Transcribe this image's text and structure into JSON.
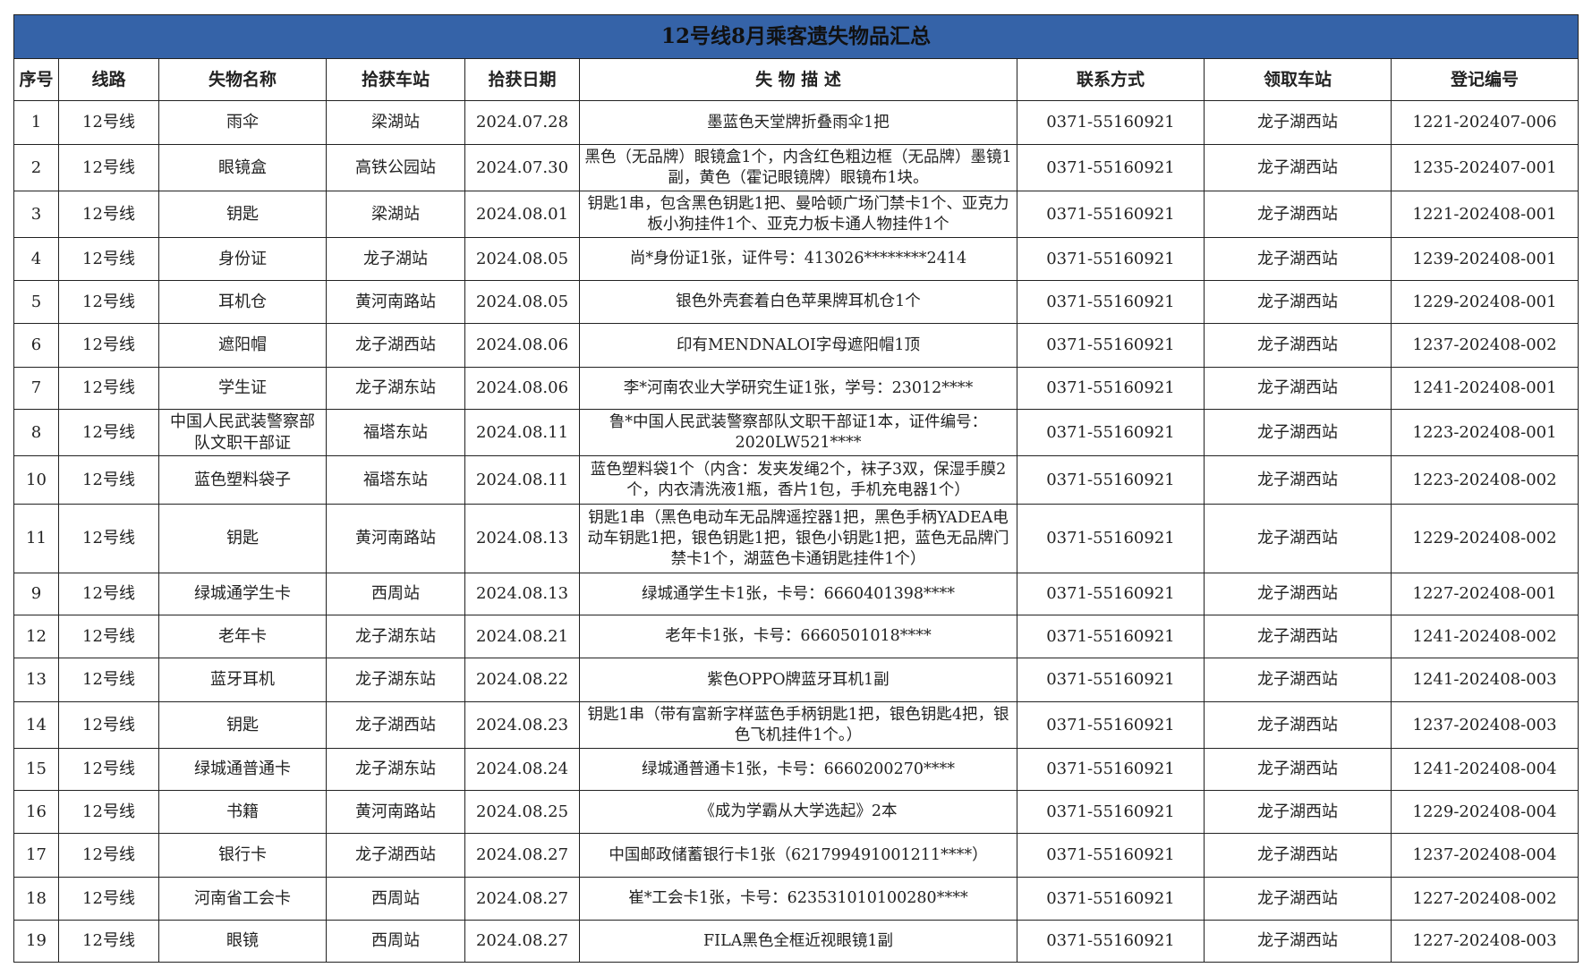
{
  "title": "12号线8月乘客遗失物品汇总",
  "headers": [
    "序号",
    "线路",
    "失物名称",
    "拾获车站",
    "拾获日期",
    "失 物 描 述",
    "联系方式",
    "领取车站",
    "登记编号"
  ],
  "rows": [
    [
      "1",
      "12号线",
      "雨伞",
      "梁湖站",
      "2024.07.28",
      "墨蓝色天堂牌折叠雨伞1把",
      "0371-55160921",
      "龙子湖西站",
      "1221-202407-006"
    ],
    [
      "2",
      "12号线",
      "眼镜盒",
      "高铁公园站",
      "2024.07.30",
      "黑色（无品牌）眼镜盒1个，内含红色粗边框（无品牌）墨镜1副，黄色（霍记眼镜牌）眼镜布1块。",
      "0371-55160921",
      "龙子湖西站",
      "1235-202407-001"
    ],
    [
      "3",
      "12号线",
      "钥匙",
      "梁湖站",
      "2024.08.01",
      "钥匙1串，包含黑色钥匙1把、曼哈顿广场门禁卡1个、亚克力板小狗挂件1个、亚克力板卡通人物挂件1个",
      "0371-55160921",
      "龙子湖西站",
      "1221-202408-001"
    ],
    [
      "4",
      "12号线",
      "身份证",
      "龙子湖站",
      "2024.08.05",
      "尚*身份证1张，证件号：413026********2414",
      "0371-55160921",
      "龙子湖西站",
      "1239-202408-001"
    ],
    [
      "5",
      "12号线",
      "耳机仓",
      "黄河南路站",
      "2024.08.05",
      "银色外壳套着白色苹果牌耳机仓1个",
      "0371-55160921",
      "龙子湖西站",
      "1229-202408-001"
    ],
    [
      "6",
      "12号线",
      "遮阳帽",
      "龙子湖西站",
      "2024.08.06",
      "印有MENDNALOI字母遮阳帽1顶",
      "0371-55160921",
      "龙子湖西站",
      "1237-202408-002"
    ],
    [
      "7",
      "12号线",
      "学生证",
      "龙子湖东站",
      "2024.08.06",
      "李*河南农业大学研究生证1张，学号：23012****",
      "0371-55160921",
      "龙子湖西站",
      "1241-202408-001"
    ],
    [
      "8",
      "12号线",
      "中国人民武装警察部队文职干部证",
      "福塔东站",
      "2024.08.11",
      "鲁*中国人民武装警察部队文职干部证1本，证件编号：2020LW521****",
      "0371-55160921",
      "龙子湖西站",
      "1223-202408-001"
    ],
    [
      "10",
      "12号线",
      "蓝色塑料袋子",
      "福塔东站",
      "2024.08.11",
      "蓝色塑料袋1个（内含：发夹发绳2个，袜子3双，保湿手膜2个，内衣清洗液1瓶，香片1包，手机充电器1个）",
      "0371-55160921",
      "龙子湖西站",
      "1223-202408-002"
    ],
    [
      "11",
      "12号线",
      "钥匙",
      "黄河南路站",
      "2024.08.13",
      "钥匙1串（黑色电动车无品牌遥控器1把，黑色手柄YADEA电动车钥匙1把，银色钥匙1把，银色小钥匙1把，蓝色无品牌门禁卡1个，湖蓝色卡通钥匙挂件1个）",
      "0371-55160921",
      "龙子湖西站",
      "1229-202408-002"
    ],
    [
      "9",
      "12号线",
      "绿城通学生卡",
      "西周站",
      "2024.08.13",
      "绿城通学生卡1张，卡号：6660401398****",
      "0371-55160921",
      "龙子湖西站",
      "1227-202408-001"
    ],
    [
      "12",
      "12号线",
      "老年卡",
      "龙子湖东站",
      "2024.08.21",
      "老年卡1张，卡号：6660501018****",
      "0371-55160921",
      "龙子湖西站",
      "1241-202408-002"
    ],
    [
      "13",
      "12号线",
      "蓝牙耳机",
      "龙子湖东站",
      "2024.08.22",
      "紫色OPPO牌蓝牙耳机1副",
      "0371-55160921",
      "龙子湖西站",
      "1241-202408-003"
    ],
    [
      "14",
      "12号线",
      "钥匙",
      "龙子湖西站",
      "2024.08.23",
      "钥匙1串（带有富新字样蓝色手柄钥匙1把，银色钥匙4把，银色飞机挂件1个。）",
      "0371-55160921",
      "龙子湖西站",
      "1237-202408-003"
    ],
    [
      "15",
      "12号线",
      "绿城通普通卡",
      "龙子湖东站",
      "2024.08.24",
      "绿城通普通卡1张，卡号：6660200270****",
      "0371-55160921",
      "龙子湖西站",
      "1241-202408-004"
    ],
    [
      "16",
      "12号线",
      "书籍",
      "黄河南路站",
      "2024.08.25",
      "《成为学霸从大学选起》2本",
      "0371-55160921",
      "龙子湖西站",
      "1229-202408-004"
    ],
    [
      "17",
      "12号线",
      "银行卡",
      "龙子湖西站",
      "2024.08.27",
      "中国邮政储蓄银行卡1张（621799491001211****）",
      "0371-55160921",
      "龙子湖西站",
      "1237-202408-004"
    ],
    [
      "18",
      "12号线",
      "河南省工会卡",
      "西周站",
      "2024.08.27",
      "崔*工会卡1张，卡号：623531010100280****",
      "0371-55160921",
      "龙子湖西站",
      "1227-202408-002"
    ],
    [
      "19",
      "12号线",
      "眼镜",
      "西周站",
      "2024.08.27",
      "FILA黑色全框近视眼镜1副",
      "0371-55160921",
      "龙子湖西站",
      "1227-202408-003"
    ]
  ],
  "colors": {
    "title_bg": "#3563a8",
    "border": "#222222"
  }
}
